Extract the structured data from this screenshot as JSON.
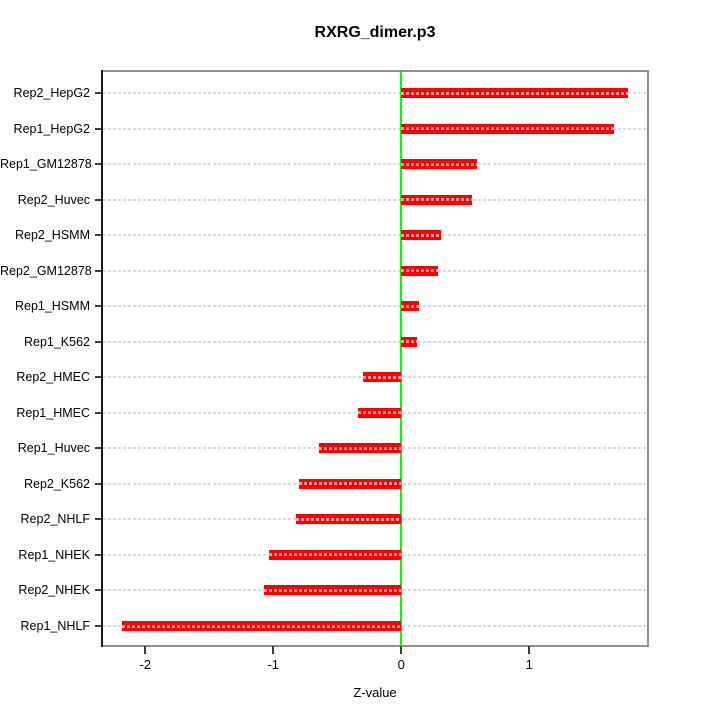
{
  "title": "RXRG_dimer.p3",
  "chart_data": {
    "type": "bar",
    "orientation": "horizontal",
    "title": "RXRG_dimer.p3",
    "xlabel": "Z-value",
    "ylabel": "",
    "categories": [
      "Rep2_HepG2",
      "Rep1_HepG2",
      "Rep1_GM12878",
      "Rep2_Huvec",
      "Rep2_HSMM",
      "Rep2_GM12878",
      "Rep1_HSMM",
      "Rep1_K562",
      "Rep2_HMEC",
      "Rep1_HMEC",
      "Rep1_Huvec",
      "Rep2_K562",
      "Rep2_NHLF",
      "Rep1_NHEK",
      "Rep2_NHEK",
      "Rep1_NHLF"
    ],
    "values": [
      1.77,
      1.66,
      0.59,
      0.55,
      0.31,
      0.29,
      0.14,
      0.12,
      -0.3,
      -0.34,
      -0.64,
      -0.8,
      -0.82,
      -1.03,
      -1.07,
      -2.18
    ],
    "xticks": [
      -2,
      -1,
      0,
      1
    ],
    "xtick_labels": [
      "-2",
      "-1",
      "0",
      "1"
    ],
    "xlim": [
      -2.33,
      1.92
    ],
    "grid": true,
    "legend": false,
    "colors": {
      "bar": "#ff0000",
      "zero_line": "#00ff00",
      "gridline": "#dadada",
      "plot_border": "#8e8e8e",
      "y_axis_line": "#1a1a1a",
      "tick": "#3c3c3c",
      "text": "#000000",
      "background": "#ffffff"
    }
  }
}
